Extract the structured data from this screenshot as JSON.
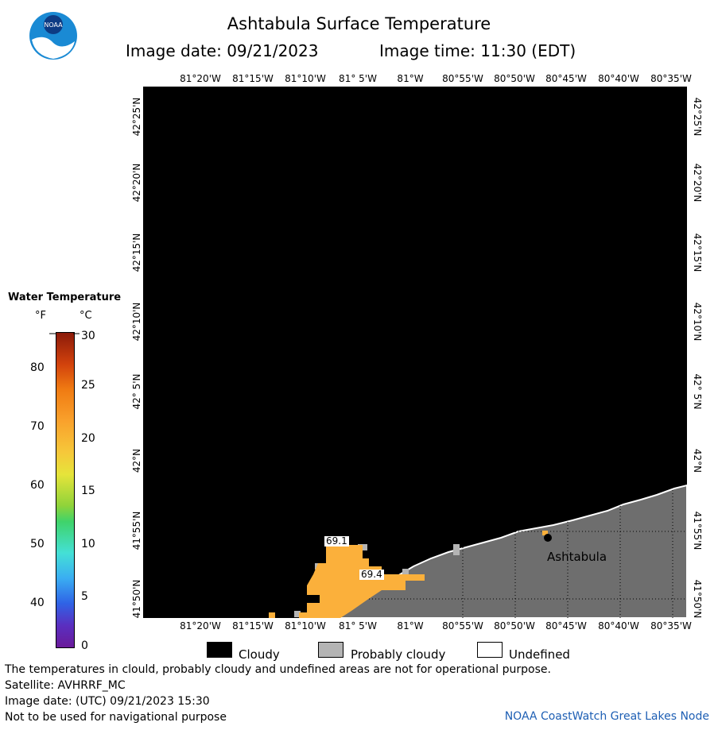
{
  "header": {
    "title": "Ashtabula Surface Temperature",
    "image_date": "Image date: 09/21/2023",
    "image_time": "Image time: 11:30 (EDT)",
    "logo_text": "NOAA"
  },
  "map": {
    "lon_labels": [
      "81°20'W",
      "81°15'W",
      "81°10'W",
      "81° 5'W",
      "81°W",
      "80°55'W",
      "80°50'W",
      "80°45'W",
      "80°40'W",
      "80°35'W"
    ],
    "lat_labels": [
      "42°25'N",
      "42°20'N",
      "42°15'N",
      "42°10'N",
      "42° 5'N",
      "42°N",
      "41°55'N",
      "41°50'N"
    ],
    "city": "Ashtabula",
    "temp_labels": [
      "69.1",
      "69.4"
    ]
  },
  "legend": {
    "title": "Water Temperature",
    "unit_f": "°F",
    "unit_c": "°C",
    "f_ticks": [
      "80",
      "70",
      "60",
      "50",
      "40"
    ],
    "c_ticks": [
      "30",
      "25",
      "20",
      "15",
      "10",
      "5",
      "0"
    ]
  },
  "cloud_key": {
    "cloudy": "Cloudy",
    "probably_cloudy": "Probably cloudy",
    "undefined": "Undefined",
    "colors": {
      "cloudy": "#000000",
      "probably_cloudy": "#b4b4b4",
      "undefined": "#ffffff",
      "land": "#6e6e6e",
      "water_warm": "#fbb03b"
    }
  },
  "footer": {
    "line1": "The temperatures in clould, probably cloudy and undefined areas are not for operational purpose.",
    "line2": "Satellite: AVHRRF_MC",
    "line3": "Image date: (UTC) 09/21/2023  15:30",
    "line4": "Not to be used for navigational purpose",
    "credit": "NOAA CoastWatch Great Lakes Node"
  }
}
